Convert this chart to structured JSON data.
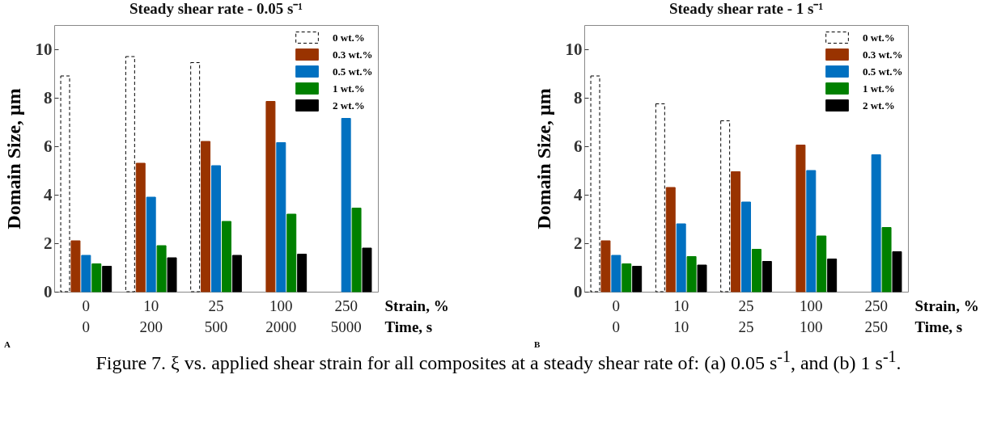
{
  "chart_data": [
    {
      "type": "bar",
      "title": "Steady shear rate - 0.05 s⁻¹",
      "xlabel": "Strain, %\nTime, s",
      "ylabel": "Domain Size, μm",
      "categories": [
        "0\n0",
        "10\n200",
        "25\n500",
        "100\n2000",
        "250\n5000"
      ],
      "ylim": [
        0,
        11
      ],
      "yticks": [
        0,
        2,
        4,
        6,
        8,
        10
      ],
      "legend": "top right",
      "annotations": [
        "A",
        "Figure 7. ξ vs. applied shear strain for all composites at a steady shear rate of: (a) 0.05 s$^{-1}$, and (b) 1 s$^{-1}$."
      ],
      "series": [
        {
          "name": "0 wt.%",
          "color": "#ffffff",
          "line_style": "dashed",
          "values": [
            8.9,
            9.7,
            9.45,
            null,
            null
          ]
        },
        {
          "name": "0.3 wt.%",
          "color": "#993300",
          "values": [
            2.1,
            5.3,
            6.2,
            7.85,
            null
          ]
        },
        {
          "name": "0.5 wt.%",
          "color": "#0070c0",
          "values": [
            1.5,
            3.9,
            5.2,
            6.15,
            7.15
          ]
        },
        {
          "name": "1 wt.%",
          "color": "#008000",
          "values": [
            1.15,
            1.9,
            2.9,
            3.2,
            3.45
          ]
        },
        {
          "name": "2 wt.%",
          "color": "#000000",
          "values": [
            1.05,
            1.4,
            1.5,
            1.55,
            1.8
          ]
        }
      ]
    },
    {
      "type": "bar",
      "title": "Steady shear rate - 1 s⁻¹",
      "xlabel": "Strain, %\nTime, s",
      "ylabel": "Domain Size, μm",
      "categories": [
        "0\n0",
        "10\n10",
        "25\n25",
        "100\n100",
        "250\n250"
      ],
      "ylim": [
        0,
        11
      ],
      "yticks": [
        0,
        2,
        4,
        6,
        8,
        10
      ],
      "legend": "top right",
      "annotations": [
        "B"
      ],
      "series": [
        {
          "name": "0 wt.%",
          "color": "#ffffff",
          "line_style": "dashed",
          "values": [
            8.9,
            7.75,
            7.05,
            null,
            null
          ]
        },
        {
          "name": "0.3 wt.%",
          "color": "#993300",
          "values": [
            2.1,
            4.3,
            4.95,
            6.05,
            null
          ]
        },
        {
          "name": "0.5 wt.%",
          "color": "#0070c0",
          "values": [
            1.5,
            2.8,
            3.7,
            5.0,
            5.65
          ]
        },
        {
          "name": "1 wt.%",
          "color": "#008000",
          "values": [
            1.15,
            1.45,
            1.75,
            2.3,
            2.65
          ]
        },
        {
          "name": "2 wt.%",
          "color": "#000000",
          "values": [
            1.05,
            1.1,
            1.25,
            1.35,
            1.65
          ]
        }
      ]
    }
  ]
}
